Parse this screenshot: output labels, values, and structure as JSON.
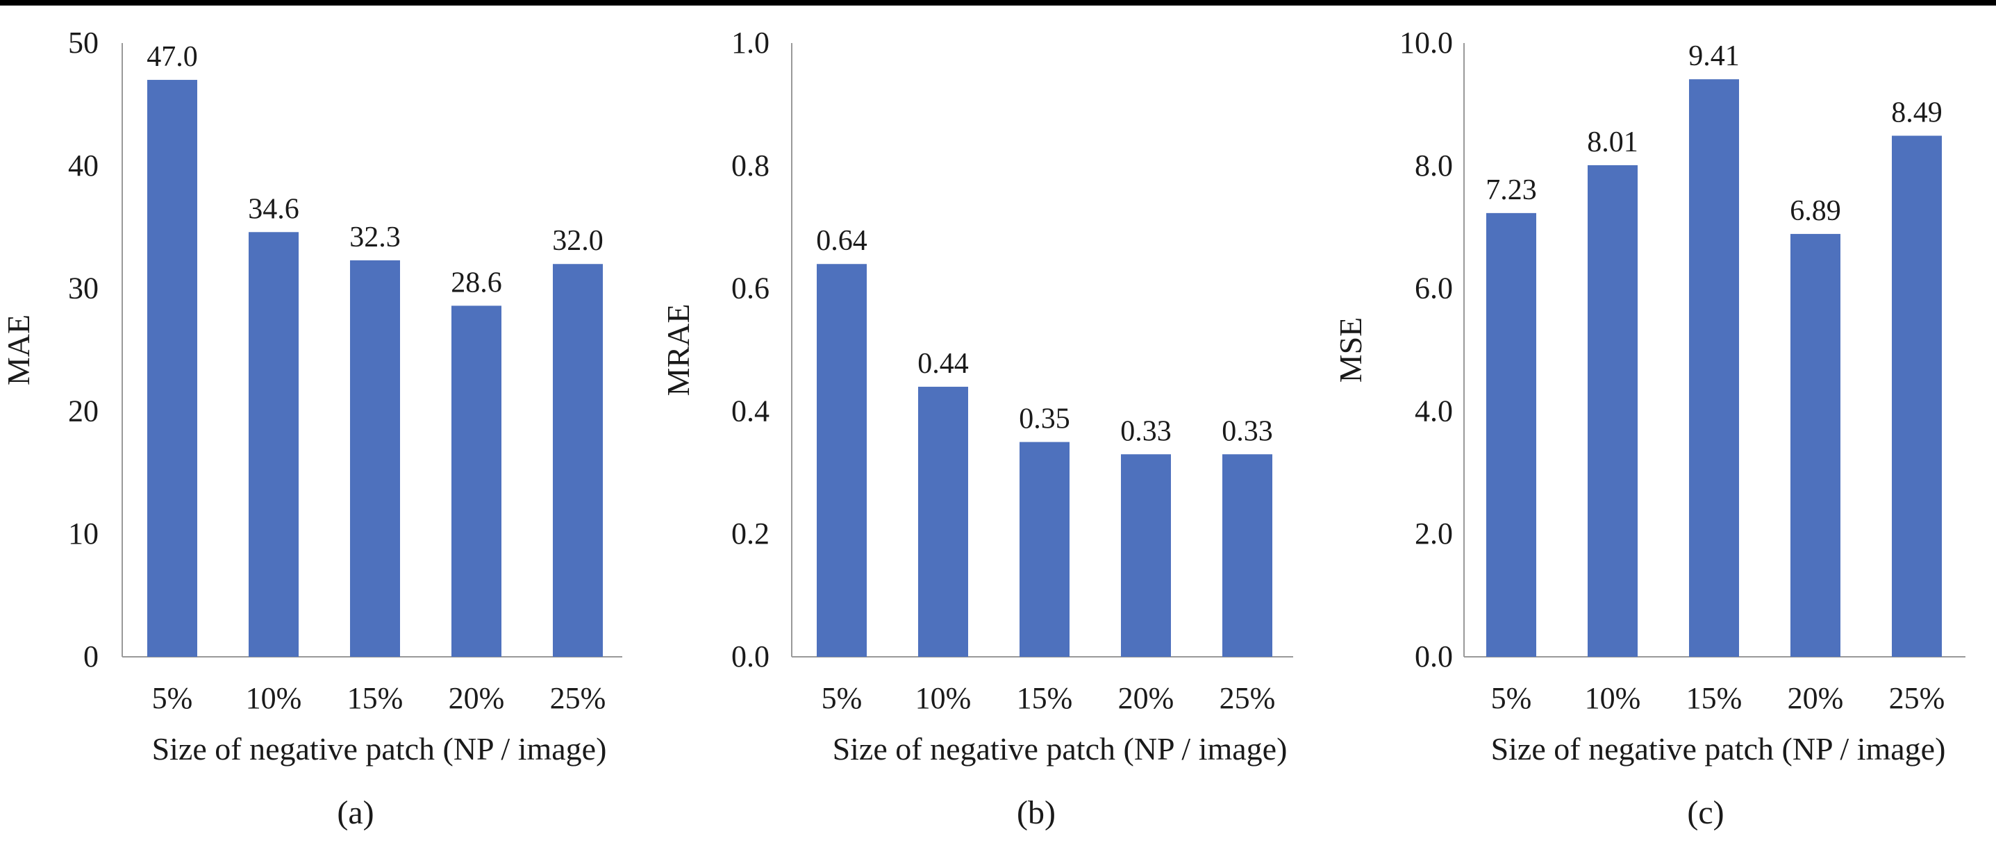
{
  "colors": {
    "bar": "#4e71bd",
    "axis": "#999999",
    "text": "#1a1a1a"
  },
  "chart_data": [
    {
      "type": "bar",
      "caption": "(a)",
      "categories": [
        "5%",
        "10%",
        "15%",
        "20%",
        "25%"
      ],
      "values": [
        47.0,
        34.6,
        32.3,
        28.6,
        32.0
      ],
      "value_labels": [
        "47.0",
        "34.6",
        "32.3",
        "28.6",
        "32.0"
      ],
      "ylabel": "MAE",
      "xlabel": "Size of negative patch (NP / image)",
      "ylim": [
        0,
        50
      ],
      "yticks": [
        "0",
        "10",
        "20",
        "30",
        "40",
        "50"
      ],
      "grid": false
    },
    {
      "type": "bar",
      "caption": "(b)",
      "categories": [
        "5%",
        "10%",
        "15%",
        "20%",
        "25%"
      ],
      "values": [
        0.64,
        0.44,
        0.35,
        0.33,
        0.33
      ],
      "value_labels": [
        "0.64",
        "0.44",
        "0.35",
        "0.33",
        "0.33"
      ],
      "ylabel": "MRAE",
      "xlabel": "Size of negative patch (NP / image)",
      "ylim": [
        0,
        1.0
      ],
      "yticks": [
        "0.0",
        "0.2",
        "0.4",
        "0.6",
        "0.8",
        "1.0"
      ],
      "grid": false
    },
    {
      "type": "bar",
      "caption": "(c)",
      "categories": [
        "5%",
        "10%",
        "15%",
        "20%",
        "25%"
      ],
      "values": [
        7.23,
        8.01,
        9.41,
        6.89,
        8.49
      ],
      "value_labels": [
        "7.23",
        "8.01",
        "9.41",
        "6.89",
        "8.49"
      ],
      "ylabel": "MSE",
      "xlabel": "Size of negative patch (NP / image)",
      "ylim": [
        0,
        10.0
      ],
      "yticks": [
        "0.0",
        "2.0",
        "4.0",
        "6.0",
        "8.0",
        "10.0"
      ],
      "grid": false
    }
  ]
}
